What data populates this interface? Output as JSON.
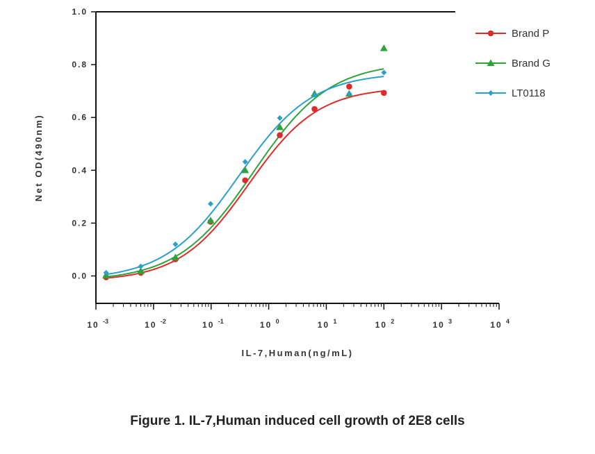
{
  "caption": "Figure 1. IL-7,Human induced cell growth of 2E8 cells",
  "chart_data": {
    "type": "scatter",
    "xlabel": "IL-7,Human(ng/mL)",
    "ylabel": "Net OD(490nm)",
    "x_scale": "log",
    "xlim": [
      0.001,
      10000
    ],
    "ylim": [
      -0.1,
      1.0
    ],
    "x_ticks": [
      0.001,
      0.01,
      0.1,
      1,
      10,
      100,
      1000,
      10000
    ],
    "x_tick_labels": [
      {
        "base": "10",
        "exp": "-3"
      },
      {
        "base": "10",
        "exp": "-2"
      },
      {
        "base": "10",
        "exp": "-1"
      },
      {
        "base": "10",
        "exp": "0"
      },
      {
        "base": "10",
        "exp": "1"
      },
      {
        "base": "10",
        "exp": "2"
      },
      {
        "base": "10",
        "exp": "3"
      },
      {
        "base": "10",
        "exp": "4"
      }
    ],
    "y_ticks": [
      0.0,
      0.2,
      0.4,
      0.6,
      0.8,
      1.0
    ],
    "y_tick_labels": [
      "0.0",
      "0.2",
      "0.4",
      "0.6",
      "0.8",
      "1.0"
    ],
    "grid": false,
    "legend_position": "top-right",
    "fit": "four-parameter logistic curve per series",
    "series": [
      {
        "name": "Brand P",
        "color": "#e02a2a",
        "marker": "circle",
        "x": [
          0.0015,
          0.006,
          0.024,
          0.098,
          0.39,
          1.56,
          6.25,
          25,
          100
        ],
        "y": [
          -0.005,
          0.012,
          0.063,
          0.205,
          0.362,
          0.533,
          0.632,
          0.717,
          0.693
        ],
        "fit_params": {
          "bottom": -0.02,
          "top": 0.715,
          "ec50": 0.45,
          "hill": 0.72
        }
      },
      {
        "name": "Brand G",
        "color": "#2ea33a",
        "marker": "triangle",
        "x": [
          0.0015,
          0.006,
          0.024,
          0.098,
          0.39,
          1.56,
          6.25,
          25,
          100
        ],
        "y": [
          0.002,
          0.018,
          0.07,
          0.21,
          0.4,
          0.563,
          0.69,
          0.69,
          0.862
        ],
        "fit_params": {
          "bottom": -0.02,
          "top": 0.81,
          "ec50": 0.55,
          "hill": 0.66
        }
      },
      {
        "name": "LT0118",
        "color": "#2a9fc9",
        "marker": "diamond",
        "x": [
          0.0015,
          0.006,
          0.024,
          0.098,
          0.39,
          1.56,
          6.25,
          25,
          100
        ],
        "y": [
          0.012,
          0.036,
          0.12,
          0.273,
          0.432,
          0.598,
          0.685,
          0.69,
          0.77
        ],
        "fit_params": {
          "bottom": -0.015,
          "top": 0.77,
          "ec50": 0.3,
          "hill": 0.68
        }
      }
    ]
  }
}
